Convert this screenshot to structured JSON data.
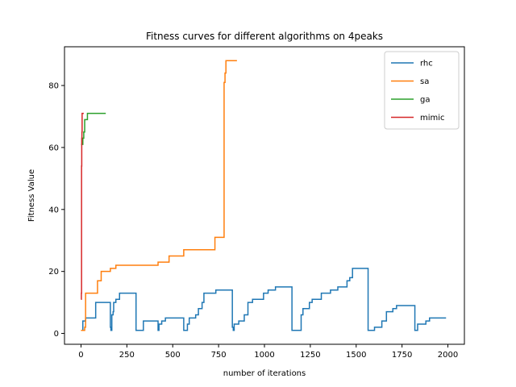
{
  "chart_data": {
    "type": "line",
    "title": "Fitness curves for different algorithms on 4peaks",
    "xlabel": "number of iterations",
    "ylabel": "Fitness Value",
    "xlim": [
      -90,
      2090
    ],
    "ylim": [
      -3.5,
      92.5
    ],
    "xticks": [
      0,
      250,
      500,
      750,
      1000,
      1250,
      1500,
      1750,
      2000
    ],
    "yticks": [
      0,
      20,
      40,
      60,
      80
    ],
    "grid": false,
    "legend_position": "top-right",
    "step": true,
    "series": [
      {
        "name": "rhc",
        "color": "#1f77b4",
        "points": [
          [
            0,
            1
          ],
          [
            10,
            4
          ],
          [
            20,
            4
          ],
          [
            25,
            5
          ],
          [
            80,
            10
          ],
          [
            155,
            10
          ],
          [
            160,
            2
          ],
          [
            163,
            1
          ],
          [
            168,
            6
          ],
          [
            175,
            7
          ],
          [
            178,
            10
          ],
          [
            190,
            11
          ],
          [
            210,
            13
          ],
          [
            300,
            1
          ],
          [
            340,
            4
          ],
          [
            420,
            1
          ],
          [
            425,
            3
          ],
          [
            440,
            4
          ],
          [
            460,
            5
          ],
          [
            560,
            1
          ],
          [
            580,
            3
          ],
          [
            590,
            5
          ],
          [
            620,
            5
          ],
          [
            625,
            6
          ],
          [
            640,
            8
          ],
          [
            660,
            10
          ],
          [
            670,
            13
          ],
          [
            735,
            14
          ],
          [
            825,
            2
          ],
          [
            830,
            1
          ],
          [
            835,
            3
          ],
          [
            860,
            4
          ],
          [
            890,
            6
          ],
          [
            900,
            6
          ],
          [
            910,
            10
          ],
          [
            935,
            11
          ],
          [
            995,
            13
          ],
          [
            1020,
            14
          ],
          [
            1060,
            15
          ],
          [
            1150,
            1
          ],
          [
            1200,
            6
          ],
          [
            1210,
            8
          ],
          [
            1245,
            10
          ],
          [
            1260,
            11
          ],
          [
            1310,
            13
          ],
          [
            1360,
            14
          ],
          [
            1400,
            15
          ],
          [
            1450,
            17
          ],
          [
            1465,
            18
          ],
          [
            1480,
            21
          ],
          [
            1565,
            1
          ],
          [
            1600,
            2
          ],
          [
            1640,
            4
          ],
          [
            1665,
            7
          ],
          [
            1700,
            8
          ],
          [
            1720,
            9
          ],
          [
            1820,
            1
          ],
          [
            1835,
            3
          ],
          [
            1880,
            4
          ],
          [
            1900,
            5
          ],
          [
            1990,
            5
          ]
        ]
      },
      {
        "name": "sa",
        "color": "#ff7f0e",
        "points": [
          [
            0,
            1
          ],
          [
            20,
            2
          ],
          [
            25,
            13
          ],
          [
            90,
            17
          ],
          [
            110,
            20
          ],
          [
            160,
            21
          ],
          [
            190,
            22
          ],
          [
            420,
            23
          ],
          [
            480,
            25
          ],
          [
            560,
            27
          ],
          [
            730,
            31
          ],
          [
            780,
            81
          ],
          [
            785,
            84
          ],
          [
            790,
            88
          ],
          [
            850,
            88
          ]
        ]
      },
      {
        "name": "ga",
        "color": "#2ca02c",
        "points": [
          [
            0,
            61
          ],
          [
            10,
            63
          ],
          [
            15,
            65
          ],
          [
            20,
            69
          ],
          [
            35,
            71
          ],
          [
            135,
            71
          ]
        ]
      },
      {
        "name": "mimic",
        "color": "#d62728",
        "points": [
          [
            0,
            11
          ],
          [
            2,
            13
          ],
          [
            3,
            54
          ],
          [
            4,
            63
          ],
          [
            5,
            65
          ],
          [
            6,
            71
          ],
          [
            15,
            71
          ]
        ]
      }
    ]
  }
}
